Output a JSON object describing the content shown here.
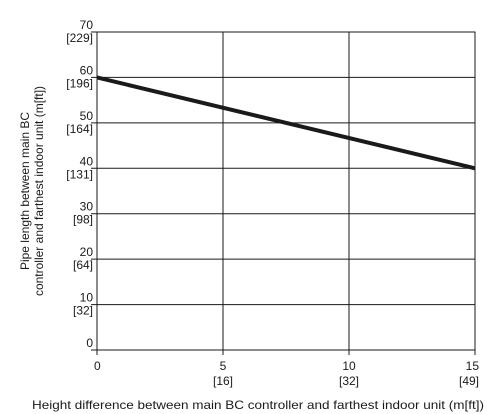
{
  "chart_data": {
    "type": "line",
    "title": "",
    "xlabel": "Height difference between main BC controller and farthest indoor unit (m[ft])",
    "ylabel_lines": [
      "Pipe length between main BC",
      "controller and farthest indoor unit (m[ft])"
    ],
    "xlim": [
      0,
      15
    ],
    "ylim": [
      0,
      70
    ],
    "grid": true,
    "x_ticks": [
      {
        "value": 0,
        "label": "0",
        "sub": ""
      },
      {
        "value": 5,
        "label": "5",
        "sub": "[16]"
      },
      {
        "value": 10,
        "label": "10",
        "sub": "[32]"
      },
      {
        "value": 15,
        "label": "15",
        "sub": "[49]"
      }
    ],
    "y_ticks": [
      {
        "value": 0,
        "label": "0",
        "sub": ""
      },
      {
        "value": 10,
        "label": "10",
        "sub": "[32]"
      },
      {
        "value": 20,
        "label": "20",
        "sub": "[64]"
      },
      {
        "value": 30,
        "label": "30",
        "sub": "[98]"
      },
      {
        "value": 40,
        "label": "40",
        "sub": "[131]"
      },
      {
        "value": 50,
        "label": "50",
        "sub": "[164]"
      },
      {
        "value": 60,
        "label": "60",
        "sub": "[196]"
      },
      {
        "value": 70,
        "label": "70",
        "sub": "[229]"
      }
    ],
    "series": [
      {
        "x": [
          0,
          15
        ],
        "y": [
          60,
          40
        ],
        "color": "#1a1a1a"
      }
    ]
  }
}
